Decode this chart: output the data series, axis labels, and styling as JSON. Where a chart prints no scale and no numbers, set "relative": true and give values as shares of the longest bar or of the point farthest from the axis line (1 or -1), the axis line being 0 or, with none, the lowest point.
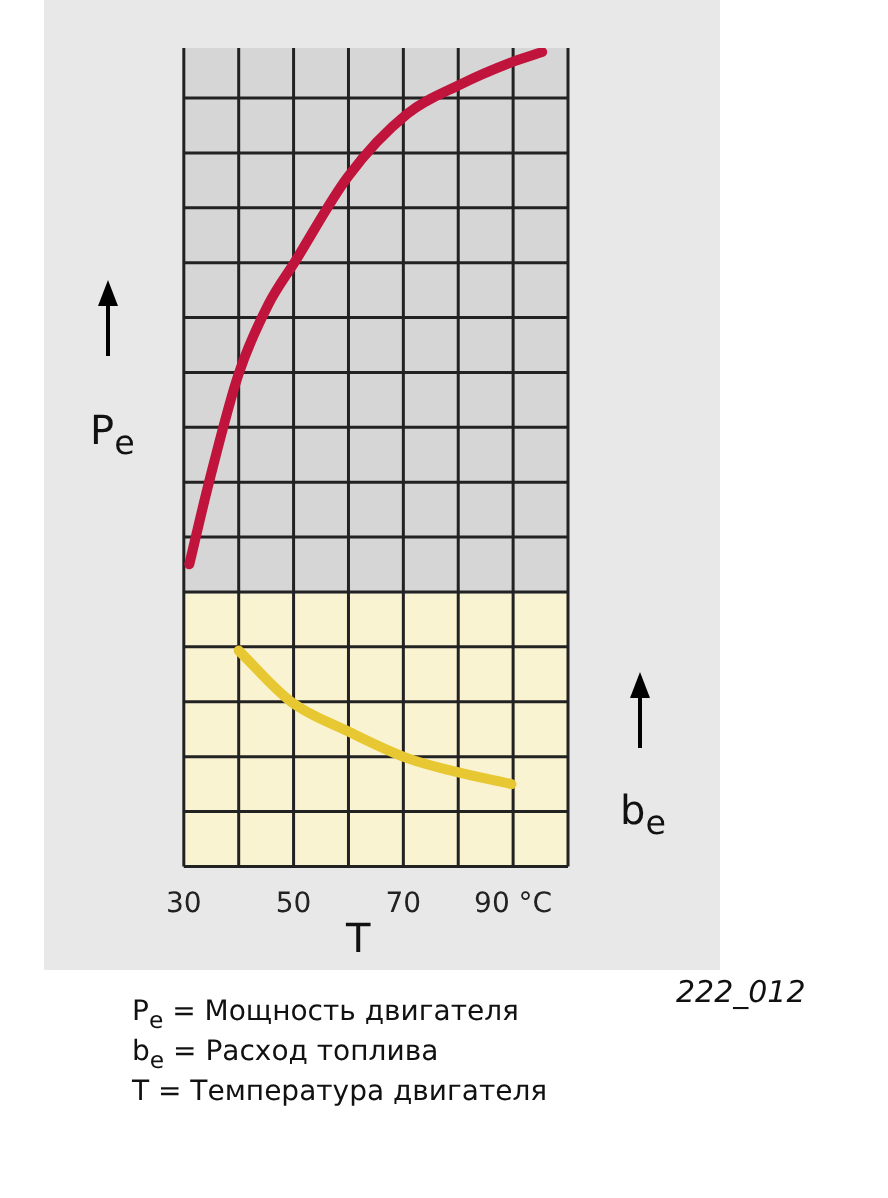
{
  "chart_data": {
    "type": "line",
    "relative": true,
    "xlabel": "T",
    "ylabel": "P$_{e}$",
    "y2label": "b$_{e}$",
    "xlim": [
      30,
      100
    ],
    "xticks": [
      {
        "value": 30,
        "label": "30"
      },
      {
        "value": 40,
        "label": null
      },
      {
        "value": 50,
        "label": "50"
      },
      {
        "value": 60,
        "label": null
      },
      {
        "value": 70,
        "label": "70"
      },
      {
        "value": 80,
        "label": null
      },
      {
        "value": 90,
        "label": "90 °C"
      },
      {
        "value": 100,
        "label": null
      }
    ],
    "grid": true,
    "legend": false,
    "marker": "none",
    "line_style": "solid",
    "bands": [
      {
        "axis": "y",
        "from": 0,
        "to": 0.335,
        "color": "#faf3d2"
      },
      {
        "axis": "y",
        "from": 0.335,
        "to": 1.005,
        "color": "#d6d6d6"
      }
    ],
    "series": [
      {
        "color": "#c0143c",
        "x": [
          31,
          34.6,
          40,
          45.4,
          50.2,
          59.9,
          70.7,
          80.3,
          89.9,
          95.3
        ],
        "values": [
          0.371,
          0.472,
          0.605,
          0.69,
          0.742,
          0.847,
          0.924,
          0.96,
          0.988,
          1
        ]
      },
      {
        "color": "#e8c832",
        "x": [
          40,
          49.6,
          59.9,
          70.7,
          79.1,
          89.7
        ],
        "values": [
          0.265,
          0.202,
          0.166,
          0.133,
          0.117,
          0.101
        ]
      }
    ],
    "annotations": [
      "222_012",
      "P$_{e}$ = Мощность двигателя",
      "b$_{e}$ = Расход топлива",
      "T = Температура двигателя"
    ]
  }
}
